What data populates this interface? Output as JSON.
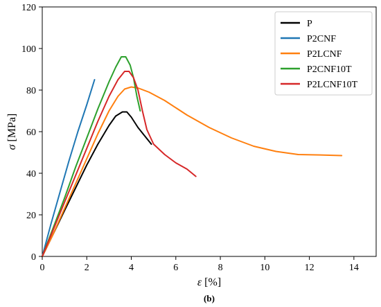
{
  "chart_data": {
    "type": "line",
    "xlabel_symbol": "ε",
    "xlabel_unit": " [%]",
    "ylabel_symbol": "σ",
    "ylabel_unit": " [MPa]",
    "caption": "(b)",
    "xlim": [
      0,
      15
    ],
    "ylim": [
      0,
      120
    ],
    "xticks": [
      0,
      2,
      4,
      6,
      8,
      10,
      12,
      14
    ],
    "yticks": [
      0,
      20,
      40,
      60,
      80,
      100,
      120
    ],
    "grid": false,
    "legend_position": "top-right",
    "series": [
      {
        "name": "P",
        "color": "#000000",
        "points": [
          [
            0,
            0
          ],
          [
            0.5,
            11
          ],
          [
            1,
            22
          ],
          [
            1.5,
            33
          ],
          [
            2,
            44
          ],
          [
            2.5,
            54
          ],
          [
            3,
            63
          ],
          [
            3.3,
            67.5
          ],
          [
            3.6,
            69.5
          ],
          [
            3.8,
            69.5
          ],
          [
            4.0,
            67
          ],
          [
            4.3,
            62
          ],
          [
            4.6,
            58
          ],
          [
            4.9,
            54
          ]
        ]
      },
      {
        "name": "P2CNF",
        "color": "#1f77b4",
        "points": [
          [
            0,
            0
          ],
          [
            0.4,
            16
          ],
          [
            0.8,
            31
          ],
          [
            1.2,
            46
          ],
          [
            1.6,
            60
          ],
          [
            2.0,
            73
          ],
          [
            2.35,
            85
          ]
        ]
      },
      {
        "name": "P2LCNF",
        "color": "#ff7f0e",
        "points": [
          [
            0,
            0
          ],
          [
            0.5,
            11
          ],
          [
            1,
            23
          ],
          [
            1.5,
            35
          ],
          [
            2,
            47
          ],
          [
            2.5,
            59
          ],
          [
            3,
            70
          ],
          [
            3.4,
            77
          ],
          [
            3.7,
            80.5
          ],
          [
            4.0,
            81.5
          ],
          [
            4.3,
            81
          ],
          [
            4.8,
            79
          ],
          [
            5.5,
            75
          ],
          [
            6.5,
            68
          ],
          [
            7.5,
            62
          ],
          [
            8.5,
            57
          ],
          [
            9.5,
            53
          ],
          [
            10.5,
            50.5
          ],
          [
            11.5,
            49
          ],
          [
            12.5,
            48.8
          ],
          [
            13.45,
            48.5
          ]
        ]
      },
      {
        "name": "P2CNF10T",
        "color": "#2ca02c",
        "points": [
          [
            0,
            0
          ],
          [
            0.5,
            14
          ],
          [
            1,
            28
          ],
          [
            1.5,
            43
          ],
          [
            2,
            57
          ],
          [
            2.5,
            71
          ],
          [
            3,
            84
          ],
          [
            3.3,
            91
          ],
          [
            3.55,
            96
          ],
          [
            3.75,
            96
          ],
          [
            3.95,
            92
          ],
          [
            4.1,
            86
          ],
          [
            4.25,
            77
          ],
          [
            4.4,
            70
          ]
        ]
      },
      {
        "name": "P2LCNF10T",
        "color": "#d62728",
        "points": [
          [
            0,
            0
          ],
          [
            0.5,
            13
          ],
          [
            1,
            26
          ],
          [
            1.5,
            39
          ],
          [
            2,
            52
          ],
          [
            2.5,
            65
          ],
          [
            3,
            77
          ],
          [
            3.4,
            85
          ],
          [
            3.7,
            89
          ],
          [
            3.9,
            89
          ],
          [
            4.1,
            86
          ],
          [
            4.3,
            80
          ],
          [
            4.5,
            70
          ],
          [
            4.7,
            61
          ],
          [
            5.0,
            54
          ],
          [
            5.5,
            49
          ],
          [
            6.0,
            45
          ],
          [
            6.5,
            42
          ],
          [
            6.9,
            38.5
          ]
        ]
      }
    ]
  }
}
